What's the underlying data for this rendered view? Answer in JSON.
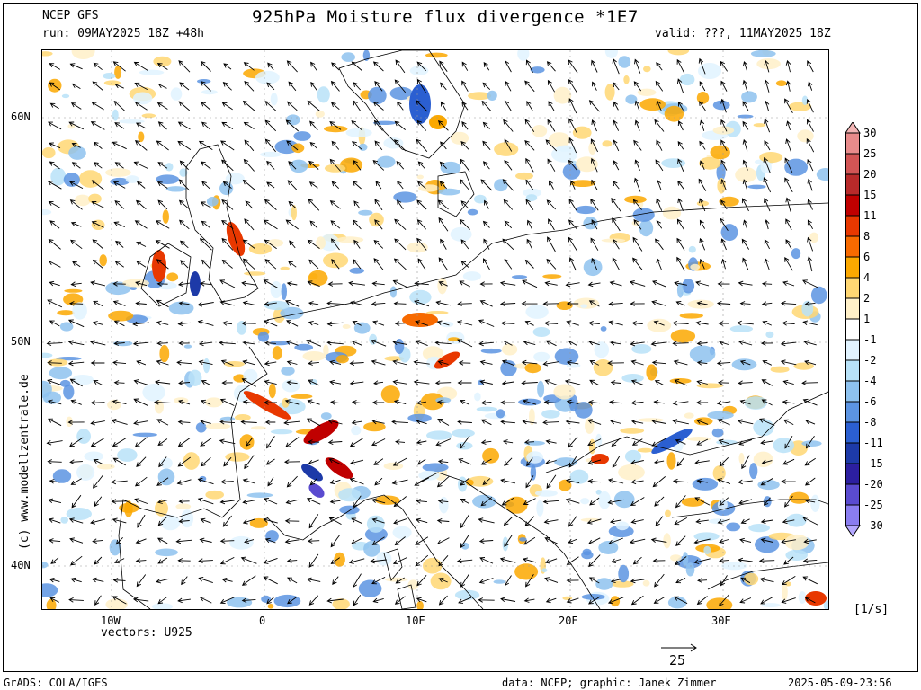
{
  "header": {
    "model": "NCEP GFS",
    "title": "925hPa Moisture flux divergence *1E7",
    "run": "run: 09MAY2025 18Z +48h",
    "valid": "valid: ???, 11MAY2025 18Z"
  },
  "map": {
    "lat_labels": [
      "60N",
      "50N",
      "40N"
    ],
    "lon_labels": [
      "10W",
      "0",
      "10E",
      "20E",
      "30E"
    ],
    "vectors_label": "vectors: U925",
    "ref_vector_label": "25",
    "watermark": "(c) www.modellzentrale.de"
  },
  "legend": {
    "unit": "[1/s]",
    "labels": [
      "30",
      "25",
      "20",
      "15",
      "11",
      "8",
      "6",
      "4",
      "2",
      "1",
      "-1",
      "-2",
      "-4",
      "-6",
      "-8",
      "-11",
      "-15",
      "-20",
      "-25",
      "-30"
    ],
    "colors": [
      "#f3b5b5",
      "#e88b8b",
      "#d25555",
      "#b82a2a",
      "#c00000",
      "#e83800",
      "#f76a00",
      "#fba800",
      "#ffd773",
      "#fff0c8",
      "#ffffff",
      "#e1f3ff",
      "#b8e2f8",
      "#8ec2ef",
      "#5c94e2",
      "#2b5fd1",
      "#1d3aa8",
      "#2c1fa0",
      "#5a4bd0",
      "#8a7df0",
      "#b4a8ff"
    ]
  },
  "footer": {
    "left": "GrADS: COLA/IGES",
    "middle": "data: NCEP; graphic: Janek Zimmer",
    "right": "2025-05-09-23:56"
  }
}
